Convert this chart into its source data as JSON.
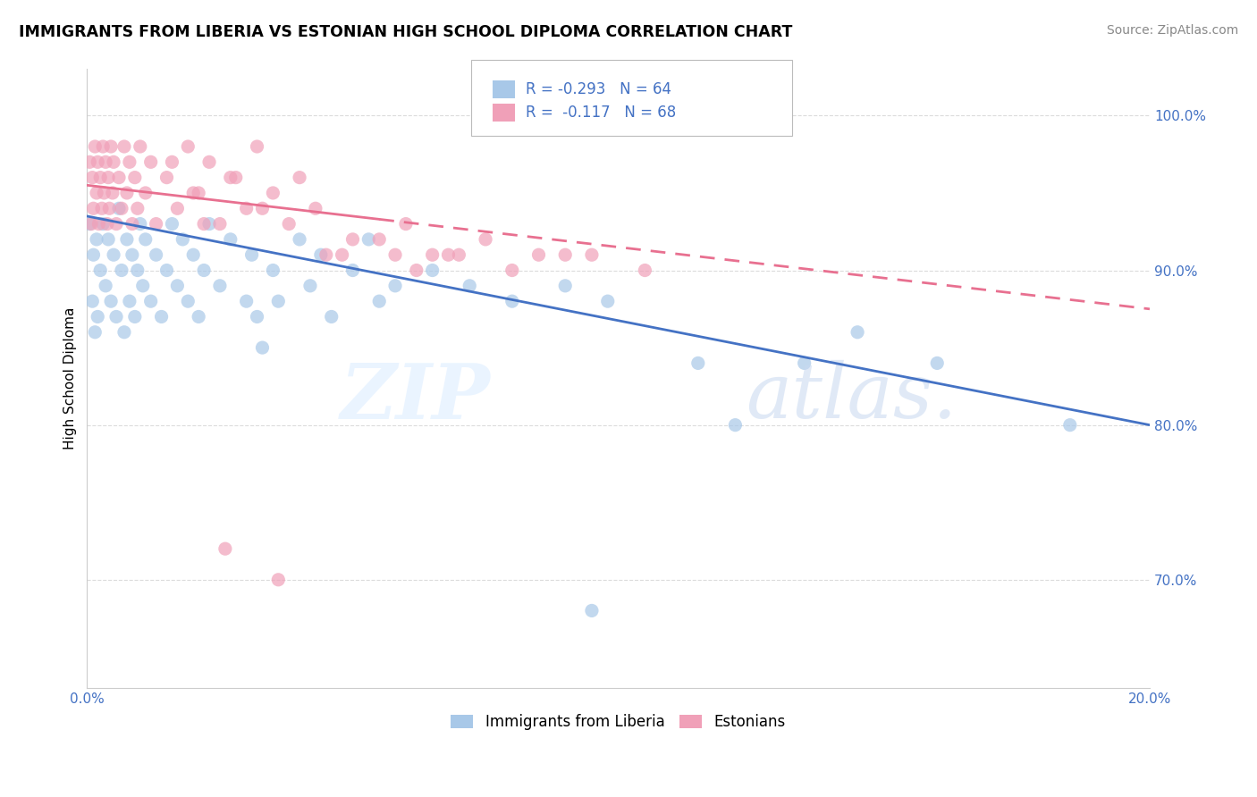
{
  "title": "IMMIGRANTS FROM LIBERIA VS ESTONIAN HIGH SCHOOL DIPLOMA CORRELATION CHART",
  "source": "Source: ZipAtlas.com",
  "ylabel": "High School Diploma",
  "legend_label1": "Immigrants from Liberia",
  "legend_label2": "Estonians",
  "r1": -0.293,
  "r2": -0.117,
  "n1": 64,
  "n2": 68,
  "color_blue": "#A8C8E8",
  "color_pink": "#F0A0B8",
  "color_blue_line": "#4472C4",
  "color_pink_line": "#E87090",
  "xmin": 0.0,
  "xmax": 20.0,
  "ymin": 63.0,
  "ymax": 103.0,
  "yticks": [
    70.0,
    80.0,
    90.0,
    100.0
  ],
  "ytick_labels": [
    "70.0%",
    "80.0%",
    "90.0%",
    "100.0%"
  ],
  "blue_line_x0": 0.0,
  "blue_line_y0": 93.5,
  "blue_line_x1": 20.0,
  "blue_line_y1": 80.0,
  "pink_line_x0": 0.0,
  "pink_line_y0": 95.5,
  "pink_line_x1": 20.0,
  "pink_line_y1": 87.5,
  "pink_solid_end_x": 5.5,
  "blue_scatter_x": [
    0.05,
    0.1,
    0.12,
    0.15,
    0.18,
    0.2,
    0.25,
    0.3,
    0.35,
    0.4,
    0.45,
    0.5,
    0.55,
    0.6,
    0.65,
    0.7,
    0.75,
    0.8,
    0.85,
    0.9,
    0.95,
    1.0,
    1.05,
    1.1,
    1.2,
    1.3,
    1.4,
    1.5,
    1.6,
    1.7,
    1.8,
    1.9,
    2.0,
    2.1,
    2.2,
    2.3,
    2.5,
    2.7,
    3.0,
    3.1,
    3.2,
    3.3,
    3.5,
    3.6,
    4.0,
    4.2,
    4.4,
    4.6,
    5.0,
    5.3,
    5.5,
    5.8,
    6.5,
    7.2,
    8.0,
    9.0,
    9.8,
    11.5,
    13.5,
    14.5,
    16.0,
    18.5,
    9.5,
    12.2
  ],
  "blue_scatter_y": [
    93,
    88,
    91,
    86,
    92,
    87,
    90,
    93,
    89,
    92,
    88,
    91,
    87,
    94,
    90,
    86,
    92,
    88,
    91,
    87,
    90,
    93,
    89,
    92,
    88,
    91,
    87,
    90,
    93,
    89,
    92,
    88,
    91,
    87,
    90,
    93,
    89,
    92,
    88,
    91,
    87,
    85,
    90,
    88,
    92,
    89,
    91,
    87,
    90,
    92,
    88,
    89,
    90,
    89,
    88,
    89,
    88,
    84,
    84,
    86,
    84,
    80,
    68,
    80
  ],
  "pink_scatter_x": [
    0.05,
    0.08,
    0.1,
    0.12,
    0.15,
    0.18,
    0.2,
    0.22,
    0.25,
    0.28,
    0.3,
    0.32,
    0.35,
    0.38,
    0.4,
    0.42,
    0.45,
    0.48,
    0.5,
    0.55,
    0.6,
    0.65,
    0.7,
    0.75,
    0.8,
    0.85,
    0.9,
    0.95,
    1.0,
    1.1,
    1.2,
    1.3,
    1.5,
    1.7,
    1.9,
    2.1,
    2.3,
    2.5,
    2.8,
    3.0,
    3.2,
    3.5,
    3.8,
    4.0,
    4.3,
    1.6,
    2.0,
    2.2,
    2.7,
    3.3,
    4.8,
    5.5,
    6.0,
    6.8,
    7.5,
    8.5,
    9.5,
    10.5,
    5.8,
    6.2,
    7.0,
    8.0,
    9.0,
    4.5,
    5.0,
    6.5,
    3.6,
    2.6
  ],
  "pink_scatter_y": [
    97,
    93,
    96,
    94,
    98,
    95,
    97,
    93,
    96,
    94,
    98,
    95,
    97,
    93,
    96,
    94,
    98,
    95,
    97,
    93,
    96,
    94,
    98,
    95,
    97,
    93,
    96,
    94,
    98,
    95,
    97,
    93,
    96,
    94,
    98,
    95,
    97,
    93,
    96,
    94,
    98,
    95,
    93,
    96,
    94,
    97,
    95,
    93,
    96,
    94,
    91,
    92,
    93,
    91,
    92,
    91,
    91,
    90,
    91,
    90,
    91,
    90,
    91,
    91,
    92,
    91,
    70,
    72
  ]
}
